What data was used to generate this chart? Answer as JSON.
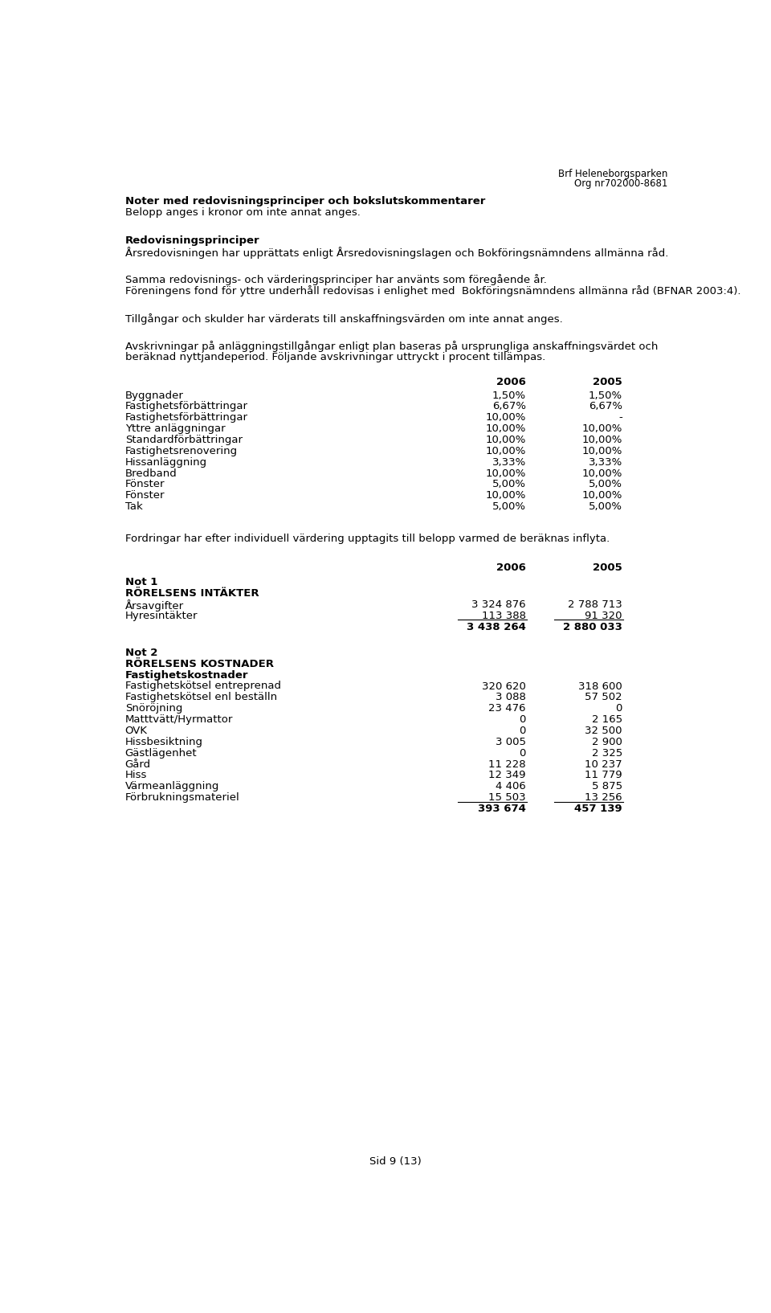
{
  "header_right_line1": "Brf Heleneborgsparken",
  "header_right_line2": "Org nr702000-8681",
  "section1_title": "Noter med redovisningsprinciper och bokslutskommentarer",
  "section1_sub": "Belopp anges i kronor om inte annat anges.",
  "section2_title": "Redovisningsprinciper",
  "section2_text": "Årsredovisningen har upprättats enligt Årsredovisningslagen och Bokföringsnämndens allmänna råd.",
  "section3_text1": "Samma redovisnings- och värderingsprinciper har använts som föregående år.",
  "section3_text2": "Föreningens fond för yttre underhåll redovisas i enlighet med  Bokföringsnämndens allmänna råd (BFNAR 2003:4).",
  "section4_text": "Tillgångar och skulder har värderats till anskaffningsvärden om inte annat anges.",
  "section5_text1": "Avskrivningar på anläggningstillgångar enligt plan baseras på ursprungliga anskaffningsvärdet och",
  "section5_text2": "beräknad nyttjandeperiod. Följande avskrivningar uttryckt i procent tillämpas.",
  "table1_col2006": "2006",
  "table1_col2005": "2005",
  "table1_rows": [
    [
      "Byggnader",
      "1,50%",
      "1,50%"
    ],
    [
      "Fastighetsförbättringar",
      "6,67%",
      "6,67%"
    ],
    [
      "Fastighetsförbättringar",
      "10,00%",
      "-"
    ],
    [
      "Yttre anläggningar",
      "10,00%",
      "10,00%"
    ],
    [
      "Standardförbättringar",
      "10,00%",
      "10,00%"
    ],
    [
      "Fastighetsrenovering",
      "10,00%",
      "10,00%"
    ],
    [
      "Hissanläggning",
      "3,33%",
      "3,33%"
    ],
    [
      "Bredband",
      "10,00%",
      "10,00%"
    ],
    [
      "Fönster",
      "5,00%",
      "5,00%"
    ],
    [
      "Fönster",
      "10,00%",
      "10,00%"
    ],
    [
      "Tak",
      "5,00%",
      "5,00%"
    ]
  ],
  "section6_text": "Fordringar har efter individuell värdering upptagits till belopp varmed de beräknas inflyta.",
  "table2_col2006": "2006",
  "table2_col2005": "2005",
  "not1_label": "Not 1",
  "not1_section": "RÖRELSENS INTÄKTER",
  "not1_rows": [
    [
      "Årsavgifter",
      "3 324 876",
      "2 788 713"
    ],
    [
      "Hyresintäkter",
      "113 388",
      "91 320"
    ]
  ],
  "not1_total": [
    "3 438 264",
    "2 880 033"
  ],
  "not2_label": "Not 2",
  "not2_section": "RÖRELSENS KOSTNADER",
  "not2_subsection": "Fastighetskostnader",
  "not2_rows": [
    [
      "Fastighetskötsel entreprenad",
      "320 620",
      "318 600"
    ],
    [
      "Fastighetskötsel enl beställn",
      "3 088",
      "57 502"
    ],
    [
      "Snöröjning",
      "23 476",
      "0"
    ],
    [
      "Matttvätt/Hyrmattor",
      "0",
      "2 165"
    ],
    [
      "OVK",
      "0",
      "32 500"
    ],
    [
      "Hissbesiktning",
      "3 005",
      "2 900"
    ],
    [
      "Gästlägenhet",
      "0",
      "2 325"
    ],
    [
      "Gård",
      "11 228",
      "10 237"
    ],
    [
      "Hiss",
      "12 349",
      "11 779"
    ],
    [
      "Värmeanläggning",
      "4 406",
      "5 875"
    ],
    [
      "Förbrukningsmateriel",
      "15 503",
      "13 256"
    ]
  ],
  "not2_total": [
    "393 674",
    "457 139"
  ],
  "footer": "Sid 9 (13)",
  "bg_color": "#ffffff",
  "text_color": "#000000"
}
